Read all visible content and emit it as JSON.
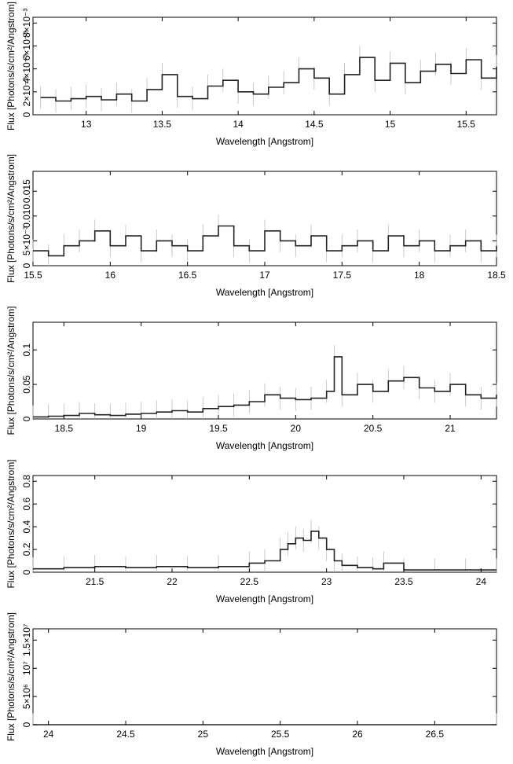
{
  "chart_data": [
    {
      "type": "line",
      "xlabel": "Wavelength [Angstrom]",
      "ylabel": "Flux [Photons/s/cm²/Angstrom]",
      "xlim": [
        12.65,
        15.7
      ],
      "ylim": [
        0,
        0.0085
      ],
      "xticks": [
        13,
        13.5,
        14,
        14.5,
        15,
        15.5
      ],
      "yticks": [
        {
          "value": 0,
          "label": "0"
        },
        {
          "value": 0.002,
          "label": "2×10⁻³"
        },
        {
          "value": 0.004,
          "label": "4×10⁻³"
        },
        {
          "value": 0.006,
          "label": "6×10⁻³"
        },
        {
          "value": 0.008,
          "label": "8×10⁻³"
        }
      ],
      "series": [
        {
          "x": [
            12.7,
            12.8,
            12.9,
            13.0,
            13.1,
            13.2,
            13.3,
            13.4,
            13.5,
            13.6,
            13.7,
            13.8,
            13.9,
            14.0,
            14.1,
            14.2,
            14.3,
            14.4,
            14.5,
            14.6,
            14.7,
            14.8,
            14.9,
            15.0,
            15.1,
            15.2,
            15.3,
            15.4,
            15.5,
            15.6,
            15.7
          ],
          "y": [
            0.0015,
            0.0012,
            0.0014,
            0.0016,
            0.0013,
            0.0018,
            0.0012,
            0.0022,
            0.0035,
            0.0016,
            0.0014,
            0.0025,
            0.003,
            0.002,
            0.0018,
            0.0024,
            0.0028,
            0.004,
            0.0032,
            0.0018,
            0.0035,
            0.005,
            0.003,
            0.0045,
            0.0028,
            0.0038,
            0.0044,
            0.0036,
            0.0048,
            0.0032,
            0.0042
          ]
        }
      ]
    },
    {
      "type": "line",
      "xlabel": "Wavelength [Angstrom]",
      "ylabel": "Flux [Photons/s/cm²/Angstrom]",
      "xlim": [
        15.5,
        18.5
      ],
      "ylim": [
        0,
        0.019
      ],
      "xticks": [
        15.5,
        16,
        16.5,
        17,
        17.5,
        18,
        18.5
      ],
      "yticks": [
        {
          "value": 0,
          "label": "0"
        },
        {
          "value": 0.005,
          "label": "5×10⁻³"
        },
        {
          "value": 0.01,
          "label": "0.010"
        },
        {
          "value": 0.015,
          "label": "0.015"
        }
      ],
      "series": [
        {
          "x": [
            15.5,
            15.6,
            15.7,
            15.8,
            15.9,
            16.0,
            16.1,
            16.2,
            16.3,
            16.4,
            16.5,
            16.6,
            16.7,
            16.8,
            16.9,
            17.0,
            17.1,
            17.2,
            17.3,
            17.4,
            17.5,
            17.6,
            17.7,
            17.8,
            17.9,
            18.0,
            18.1,
            18.2,
            18.3,
            18.4,
            18.5
          ],
          "y": [
            0.003,
            0.002,
            0.004,
            0.005,
            0.007,
            0.004,
            0.006,
            0.003,
            0.005,
            0.004,
            0.003,
            0.006,
            0.008,
            0.004,
            0.003,
            0.007,
            0.005,
            0.004,
            0.006,
            0.003,
            0.004,
            0.005,
            0.003,
            0.006,
            0.004,
            0.005,
            0.003,
            0.004,
            0.005,
            0.003,
            0.004
          ]
        }
      ]
    },
    {
      "type": "line",
      "xlabel": "Wavelength [Angstrom]",
      "ylabel": "Flux [Photons/s/cm²/Angstrom]",
      "xlim": [
        18.3,
        21.3
      ],
      "ylim": [
        0,
        0.14
      ],
      "xticks": [
        18.5,
        19,
        19.5,
        20,
        20.5,
        21
      ],
      "yticks": [
        {
          "value": 0,
          "label": "0"
        },
        {
          "value": 0.05,
          "label": "0.05"
        },
        {
          "value": 0.1,
          "label": "0.1"
        }
      ],
      "series": [
        {
          "x": [
            18.3,
            18.4,
            18.5,
            18.6,
            18.7,
            18.8,
            18.9,
            19.0,
            19.1,
            19.2,
            19.3,
            19.4,
            19.5,
            19.6,
            19.7,
            19.8,
            19.9,
            20.0,
            20.1,
            20.2,
            20.25,
            20.3,
            20.4,
            20.5,
            20.6,
            20.7,
            20.8,
            20.9,
            21.0,
            21.1,
            21.2,
            21.3
          ],
          "y": [
            0.003,
            0.004,
            0.005,
            0.008,
            0.006,
            0.005,
            0.007,
            0.008,
            0.01,
            0.012,
            0.01,
            0.015,
            0.018,
            0.02,
            0.025,
            0.035,
            0.03,
            0.028,
            0.03,
            0.04,
            0.09,
            0.035,
            0.05,
            0.04,
            0.055,
            0.06,
            0.045,
            0.04,
            0.05,
            0.035,
            0.03,
            0.035
          ]
        }
      ]
    },
    {
      "type": "line",
      "xlabel": "Wavelength [Angstrom]",
      "ylabel": "Flux [Photons/s/cm²/Angstrom]",
      "xlim": [
        21.1,
        24.1
      ],
      "ylim": [
        0,
        0.85
      ],
      "xticks": [
        21.5,
        22,
        22.5,
        23,
        23.5,
        24
      ],
      "yticks": [
        {
          "value": 0,
          "label": "0"
        },
        {
          "value": 0.2,
          "label": "0.2"
        },
        {
          "value": 0.4,
          "label": "0.4"
        },
        {
          "value": 0.6,
          "label": "0.6"
        },
        {
          "value": 0.8,
          "label": "0.8"
        }
      ],
      "series": [
        {
          "x": [
            21.1,
            21.3,
            21.5,
            21.7,
            21.9,
            22.1,
            22.3,
            22.5,
            22.6,
            22.7,
            22.75,
            22.8,
            22.85,
            22.9,
            22.95,
            23.0,
            23.05,
            23.1,
            23.2,
            23.3,
            23.37,
            23.5,
            23.7,
            23.9,
            24.1
          ],
          "y": [
            0.03,
            0.04,
            0.05,
            0.04,
            0.05,
            0.04,
            0.05,
            0.08,
            0.1,
            0.2,
            0.25,
            0.3,
            0.28,
            0.36,
            0.3,
            0.2,
            0.1,
            0.06,
            0.04,
            0.03,
            0.08,
            0.02,
            0.02,
            0.02,
            0.02
          ]
        }
      ]
    },
    {
      "type": "line",
      "xlabel": "Wavelength [Angstrom]",
      "ylabel": "Flux [Photons/s/cm²/Angstrom]",
      "xlim": [
        23.9,
        26.9
      ],
      "ylim": [
        0,
        17000000
      ],
      "xticks": [
        24,
        24.5,
        25,
        25.5,
        26,
        26.5
      ],
      "yticks": [
        {
          "value": 0,
          "label": "0"
        },
        {
          "value": 5000000,
          "label": "5×10⁶"
        },
        {
          "value": 10000000,
          "label": "10⁷"
        },
        {
          "value": 15000000,
          "label": "1.5×10⁷"
        }
      ],
      "series": [
        {
          "x": [
            23.9,
            26.9
          ],
          "y": [
            0,
            0
          ]
        }
      ]
    }
  ]
}
